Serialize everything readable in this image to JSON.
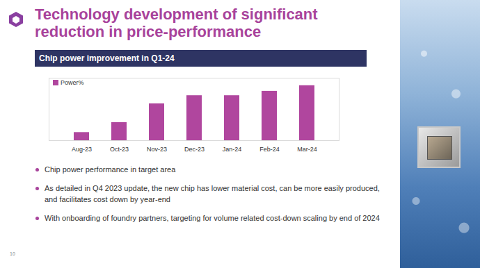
{
  "slide": {
    "title": "Technology development of significant reduction in price-performance",
    "bullets": [
      "Chip power performance in target area",
      "As detailed in Q4 2023 update, the new chip has lower material cost, can be more easily produced, and facilitates cost down by year-end",
      "With onboarding of foundry partners, targeting for volume related cost-down scaling by end of 2024"
    ],
    "page_number": 10
  },
  "chart_data": {
    "type": "bar",
    "title": "Chip power improvement in Q1-24",
    "categories": [
      "Aug-23",
      "Oct-23",
      "Nov-23",
      "Dec-23",
      "Jan-24",
      "Feb-24",
      "Mar-24"
    ],
    "series": [
      {
        "name": "Power%",
        "color": "#b0469e",
        "values": [
          13,
          29,
          59,
          72,
          72,
          79,
          88
        ]
      }
    ],
    "ylim": [
      0,
      100
    ],
    "tick_labels": "x",
    "legend": "top-left"
  }
}
